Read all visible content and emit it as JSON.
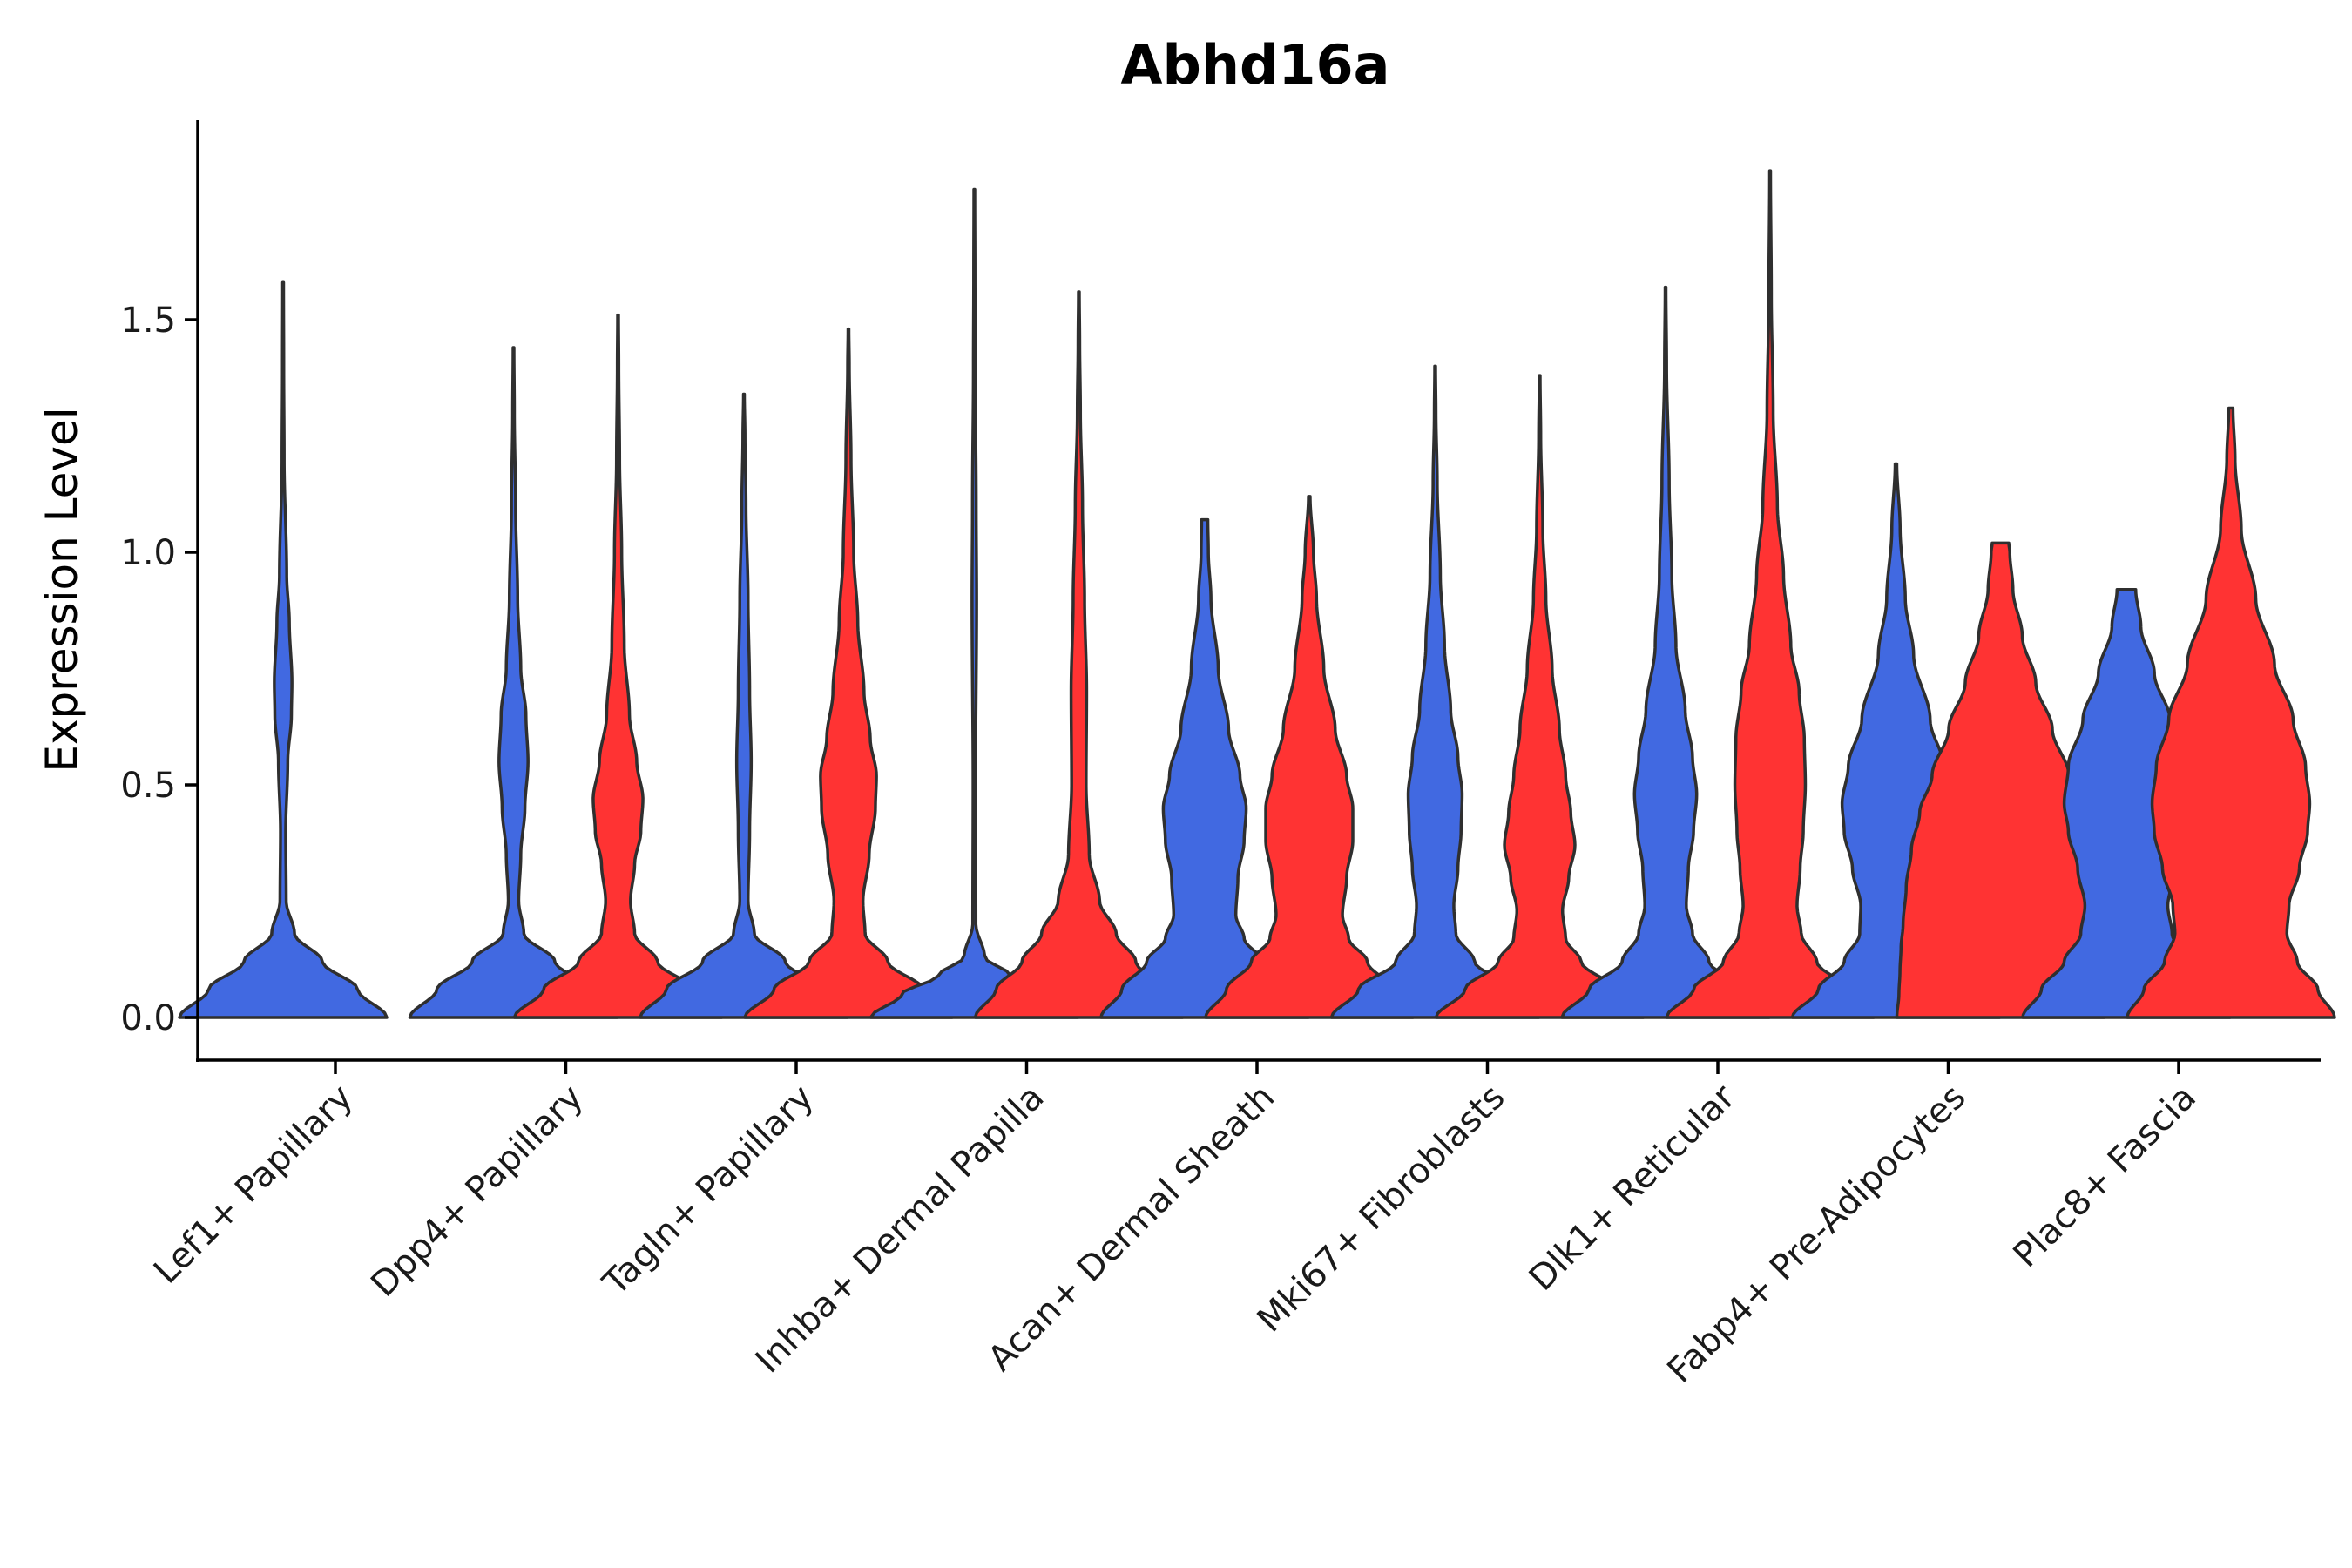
{
  "chart_data": {
    "type": "violin",
    "title": "Abhd16a",
    "ylabel": "Expression Level",
    "xlabel": "",
    "ylim": [
      -0.09,
      1.93
    ],
    "yticks": [
      0.0,
      0.5,
      1.0,
      1.5
    ],
    "ytick_labels": [
      "0.0",
      "0.5",
      "1.0",
      "1.5"
    ],
    "colors": {
      "group1": "#4169E1",
      "group2": "#FF3333",
      "outline": "#2f2f2f"
    },
    "categories": [
      "Lef1+ Papillary",
      "Dpp4+ Papillary",
      "Tagln+ Papillary",
      "Inhba+ Dermal Papilla",
      "Acan+ Dermal Sheath",
      "Mki67+ Fibroblasts",
      "Dlk1+ Reticular",
      "Fabp4+ Pre-Adipocytes",
      "Plac8+ Fascia"
    ],
    "violins": [
      {
        "category": "Lef1+ Papillary",
        "group": "group1",
        "ymax": 1.58,
        "profile": [
          [
            0.0,
            1.0
          ],
          [
            0.06,
            0.72
          ],
          [
            0.12,
            0.38
          ],
          [
            0.18,
            0.11
          ],
          [
            0.25,
            0.03
          ],
          [
            0.4,
            0.025
          ],
          [
            0.55,
            0.045
          ],
          [
            0.65,
            0.08
          ],
          [
            0.72,
            0.085
          ],
          [
            0.85,
            0.06
          ],
          [
            0.95,
            0.035
          ],
          [
            1.2,
            0.01
          ],
          [
            1.4,
            0.006
          ],
          [
            1.58,
            0.004
          ]
        ]
      },
      {
        "category": "Dpp4+ Papillary",
        "group": "group1",
        "ymax": 1.44,
        "profile": [
          [
            0.0,
            1.0
          ],
          [
            0.06,
            0.74
          ],
          [
            0.12,
            0.4
          ],
          [
            0.18,
            0.1
          ],
          [
            0.25,
            0.05
          ],
          [
            0.35,
            0.07
          ],
          [
            0.45,
            0.11
          ],
          [
            0.55,
            0.14
          ],
          [
            0.65,
            0.12
          ],
          [
            0.75,
            0.07
          ],
          [
            0.9,
            0.04
          ],
          [
            1.1,
            0.02
          ],
          [
            1.3,
            0.008
          ],
          [
            1.44,
            0.004
          ]
        ]
      },
      {
        "category": "Dpp4+ Papillary",
        "group": "group2",
        "ymax": 1.51,
        "profile": [
          [
            0.0,
            1.0
          ],
          [
            0.06,
            0.72
          ],
          [
            0.12,
            0.38
          ],
          [
            0.18,
            0.16
          ],
          [
            0.25,
            0.12
          ],
          [
            0.33,
            0.16
          ],
          [
            0.4,
            0.22
          ],
          [
            0.47,
            0.24
          ],
          [
            0.55,
            0.18
          ],
          [
            0.65,
            0.11
          ],
          [
            0.8,
            0.06
          ],
          [
            1.0,
            0.035
          ],
          [
            1.2,
            0.015
          ],
          [
            1.4,
            0.007
          ],
          [
            1.51,
            0.004
          ]
        ]
      },
      {
        "category": "Tagln+ Papillary",
        "group": "group1",
        "ymax": 1.34,
        "profile": [
          [
            0.0,
            1.0
          ],
          [
            0.06,
            0.75
          ],
          [
            0.12,
            0.4
          ],
          [
            0.18,
            0.1
          ],
          [
            0.25,
            0.04
          ],
          [
            0.4,
            0.055
          ],
          [
            0.55,
            0.07
          ],
          [
            0.7,
            0.055
          ],
          [
            0.9,
            0.04
          ],
          [
            1.1,
            0.02
          ],
          [
            1.25,
            0.01
          ],
          [
            1.34,
            0.004
          ]
        ]
      },
      {
        "category": "Tagln+ Papillary",
        "group": "group2",
        "ymax": 1.48,
        "profile": [
          [
            0.0,
            1.0
          ],
          [
            0.06,
            0.72
          ],
          [
            0.12,
            0.38
          ],
          [
            0.18,
            0.16
          ],
          [
            0.25,
            0.14
          ],
          [
            0.35,
            0.2
          ],
          [
            0.45,
            0.26
          ],
          [
            0.52,
            0.27
          ],
          [
            0.6,
            0.21
          ],
          [
            0.7,
            0.15
          ],
          [
            0.85,
            0.09
          ],
          [
            1.0,
            0.05
          ],
          [
            1.2,
            0.025
          ],
          [
            1.4,
            0.008
          ],
          [
            1.48,
            0.004
          ]
        ]
      },
      {
        "category": "Inhba+ Dermal Papilla",
        "group": "group1",
        "ymax": 1.78,
        "profile": [
          [
            0.0,
            1.0
          ],
          [
            0.05,
            0.7
          ],
          [
            0.09,
            0.35
          ],
          [
            0.13,
            0.1
          ],
          [
            0.2,
            0.015
          ],
          [
            0.5,
            0.012
          ],
          [
            0.9,
            0.022
          ],
          [
            1.1,
            0.018
          ],
          [
            1.4,
            0.009
          ],
          [
            1.6,
            0.006
          ],
          [
            1.78,
            0.004
          ]
        ]
      },
      {
        "category": "Inhba+ Dermal Papilla",
        "group": "group2",
        "ymax": 1.56,
        "profile": [
          [
            0.0,
            1.0
          ],
          [
            0.06,
            0.8
          ],
          [
            0.12,
            0.55
          ],
          [
            0.18,
            0.36
          ],
          [
            0.25,
            0.2
          ],
          [
            0.35,
            0.1
          ],
          [
            0.5,
            0.07
          ],
          [
            0.7,
            0.075
          ],
          [
            0.9,
            0.055
          ],
          [
            1.1,
            0.035
          ],
          [
            1.3,
            0.015
          ],
          [
            1.45,
            0.008
          ],
          [
            1.56,
            0.004
          ]
        ]
      },
      {
        "category": "Acan+ Dermal Sheath",
        "group": "group1",
        "ymax": 1.07,
        "profile": [
          [
            0.0,
            1.0
          ],
          [
            0.06,
            0.8
          ],
          [
            0.12,
            0.56
          ],
          [
            0.17,
            0.38
          ],
          [
            0.22,
            0.3
          ],
          [
            0.3,
            0.32
          ],
          [
            0.38,
            0.38
          ],
          [
            0.45,
            0.4
          ],
          [
            0.52,
            0.34
          ],
          [
            0.62,
            0.23
          ],
          [
            0.75,
            0.13
          ],
          [
            0.9,
            0.06
          ],
          [
            1.0,
            0.035
          ],
          [
            1.07,
            0.03
          ]
        ]
      },
      {
        "category": "Acan+ Dermal Sheath",
        "group": "group2",
        "ymax": 1.12,
        "profile": [
          [
            0.0,
            1.0
          ],
          [
            0.06,
            0.8
          ],
          [
            0.12,
            0.56
          ],
          [
            0.17,
            0.38
          ],
          [
            0.22,
            0.32
          ],
          [
            0.3,
            0.36
          ],
          [
            0.38,
            0.42
          ],
          [
            0.45,
            0.42
          ],
          [
            0.52,
            0.36
          ],
          [
            0.62,
            0.25
          ],
          [
            0.75,
            0.14
          ],
          [
            0.9,
            0.07
          ],
          [
            1.0,
            0.04
          ],
          [
            1.12,
            0.008
          ]
        ]
      },
      {
        "category": "Mki67+ Fibroblasts",
        "group": "group1",
        "ymax": 1.4,
        "profile": [
          [
            0.0,
            1.0
          ],
          [
            0.06,
            0.74
          ],
          [
            0.12,
            0.38
          ],
          [
            0.18,
            0.2
          ],
          [
            0.24,
            0.18
          ],
          [
            0.32,
            0.22
          ],
          [
            0.4,
            0.25
          ],
          [
            0.48,
            0.26
          ],
          [
            0.56,
            0.22
          ],
          [
            0.66,
            0.15
          ],
          [
            0.8,
            0.09
          ],
          [
            0.95,
            0.05
          ],
          [
            1.15,
            0.02
          ],
          [
            1.3,
            0.008
          ],
          [
            1.4,
            0.004
          ]
        ]
      },
      {
        "category": "Mki67+ Fibroblasts",
        "group": "group2",
        "ymax": 1.38,
        "profile": [
          [
            0.0,
            1.0
          ],
          [
            0.06,
            0.72
          ],
          [
            0.12,
            0.4
          ],
          [
            0.17,
            0.25
          ],
          [
            0.23,
            0.22
          ],
          [
            0.3,
            0.28
          ],
          [
            0.37,
            0.34
          ],
          [
            0.44,
            0.3
          ],
          [
            0.52,
            0.25
          ],
          [
            0.62,
            0.19
          ],
          [
            0.75,
            0.12
          ],
          [
            0.9,
            0.06
          ],
          [
            1.05,
            0.03
          ],
          [
            1.25,
            0.01
          ],
          [
            1.38,
            0.004
          ]
        ]
      },
      {
        "category": "Dlk1+ Reticular",
        "group": "group1",
        "ymax": 1.57,
        "profile": [
          [
            0.0,
            1.0
          ],
          [
            0.06,
            0.74
          ],
          [
            0.12,
            0.42
          ],
          [
            0.18,
            0.26
          ],
          [
            0.24,
            0.2
          ],
          [
            0.32,
            0.22
          ],
          [
            0.4,
            0.27
          ],
          [
            0.48,
            0.3
          ],
          [
            0.56,
            0.26
          ],
          [
            0.66,
            0.19
          ],
          [
            0.8,
            0.1
          ],
          [
            0.95,
            0.06
          ],
          [
            1.15,
            0.035
          ],
          [
            1.4,
            0.01
          ],
          [
            1.57,
            0.004
          ]
        ]
      },
      {
        "category": "Dlk1+ Reticular",
        "group": "group2",
        "ymax": 1.82,
        "profile": [
          [
            0.0,
            1.0
          ],
          [
            0.06,
            0.74
          ],
          [
            0.12,
            0.45
          ],
          [
            0.18,
            0.3
          ],
          [
            0.24,
            0.26
          ],
          [
            0.32,
            0.29
          ],
          [
            0.4,
            0.32
          ],
          [
            0.5,
            0.34
          ],
          [
            0.6,
            0.33
          ],
          [
            0.7,
            0.28
          ],
          [
            0.8,
            0.2
          ],
          [
            0.95,
            0.13
          ],
          [
            1.1,
            0.07
          ],
          [
            1.3,
            0.03
          ],
          [
            1.55,
            0.012
          ],
          [
            1.82,
            0.004
          ]
        ]
      },
      {
        "category": "Fabp4+ Pre-Adipocytes",
        "group": "group1",
        "ymax": 1.19,
        "profile": [
          [
            0.0,
            1.0
          ],
          [
            0.06,
            0.75
          ],
          [
            0.12,
            0.5
          ],
          [
            0.18,
            0.35
          ],
          [
            0.24,
            0.34
          ],
          [
            0.32,
            0.42
          ],
          [
            0.4,
            0.5
          ],
          [
            0.46,
            0.52
          ],
          [
            0.54,
            0.46
          ],
          [
            0.64,
            0.33
          ],
          [
            0.78,
            0.17
          ],
          [
            0.9,
            0.09
          ],
          [
            1.05,
            0.04
          ],
          [
            1.19,
            0.008
          ]
        ]
      },
      {
        "category": "Fabp4+ Pre-Adipocytes",
        "group": "group2",
        "ymax": 1.02,
        "profile": [
          [
            0.0,
            1.0
          ],
          [
            0.05,
            0.98
          ],
          [
            0.1,
            0.97
          ],
          [
            0.15,
            0.96
          ],
          [
            0.2,
            0.94
          ],
          [
            0.28,
            0.91
          ],
          [
            0.36,
            0.86
          ],
          [
            0.44,
            0.78
          ],
          [
            0.52,
            0.66
          ],
          [
            0.62,
            0.5
          ],
          [
            0.72,
            0.34
          ],
          [
            0.82,
            0.21
          ],
          [
            0.92,
            0.12
          ],
          [
            1.0,
            0.09
          ],
          [
            1.02,
            0.08
          ]
        ]
      },
      {
        "category": "Plac8+ Fascia",
        "group": "group1",
        "ymax": 0.92,
        "profile": [
          [
            0.0,
            1.0
          ],
          [
            0.06,
            0.82
          ],
          [
            0.12,
            0.6
          ],
          [
            0.18,
            0.44
          ],
          [
            0.24,
            0.4
          ],
          [
            0.32,
            0.47
          ],
          [
            0.4,
            0.56
          ],
          [
            0.46,
            0.6
          ],
          [
            0.54,
            0.56
          ],
          [
            0.64,
            0.42
          ],
          [
            0.74,
            0.27
          ],
          [
            0.84,
            0.14
          ],
          [
            0.92,
            0.09
          ]
        ]
      },
      {
        "category": "Plac8+ Fascia",
        "group": "group2",
        "ymax": 1.31,
        "profile": [
          [
            0.0,
            1.0
          ],
          [
            0.06,
            0.84
          ],
          [
            0.12,
            0.64
          ],
          [
            0.18,
            0.54
          ],
          [
            0.24,
            0.56
          ],
          [
            0.32,
            0.66
          ],
          [
            0.4,
            0.74
          ],
          [
            0.46,
            0.76
          ],
          [
            0.54,
            0.72
          ],
          [
            0.64,
            0.6
          ],
          [
            0.76,
            0.42
          ],
          [
            0.9,
            0.24
          ],
          [
            1.05,
            0.1
          ],
          [
            1.2,
            0.04
          ],
          [
            1.31,
            0.02
          ]
        ]
      }
    ]
  }
}
